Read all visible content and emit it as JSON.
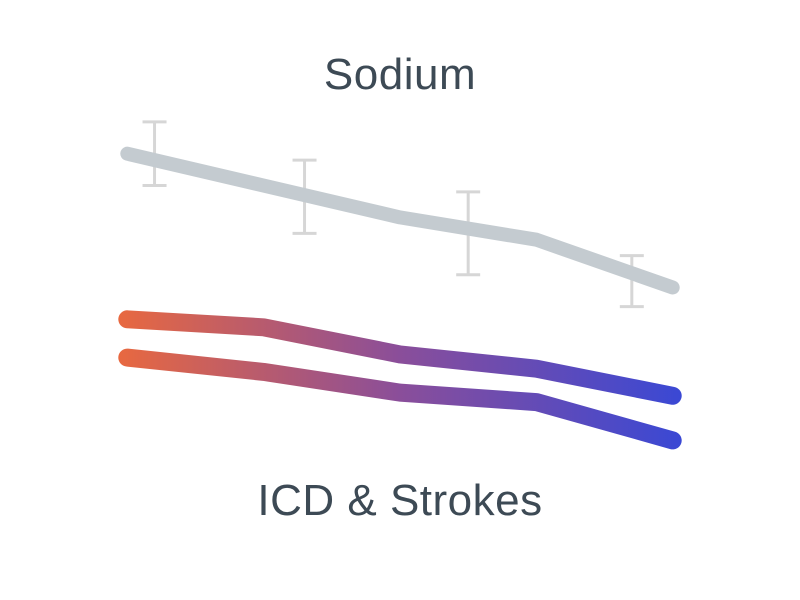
{
  "chart_data": {
    "type": "line",
    "grid": false,
    "legend": "none",
    "x": [
      1,
      2,
      3,
      4,
      5
    ],
    "series": [
      {
        "name": "Sodium",
        "label_position": "above",
        "color": "#c4cbd0",
        "error_bar_color": "#d6d6d6",
        "values": [
          6.0,
          5.0,
          4.0,
          3.3,
          1.8
        ],
        "error_bars": [
          {
            "x": 1.2,
            "center": 6.0,
            "low": 5.0,
            "high": 7.0
          },
          {
            "x": 2.3,
            "center": 4.5,
            "low": 3.5,
            "high": 5.8
          },
          {
            "x": 3.5,
            "center": 3.6,
            "low": 2.2,
            "high": 4.8
          },
          {
            "x": 4.7,
            "center": 2.2,
            "low": 1.2,
            "high": 2.8
          }
        ]
      },
      {
        "name": "ICD & Strokes",
        "label_position": "below",
        "gradient": [
          "#ee6a3a",
          "#8a4e9a",
          "#3548d8"
        ],
        "values": [
          0.8,
          0.55,
          -0.3,
          -0.75,
          -1.6
        ]
      },
      {
        "name": "ICD & Strokes",
        "label_position": "below",
        "gradient": [
          "#ee6a3a",
          "#8a4e9a",
          "#3548d8"
        ],
        "values": [
          -0.4,
          -0.85,
          -1.5,
          -1.8,
          -3.0
        ]
      }
    ],
    "xlim": [
      0.8,
      5.2
    ],
    "ylim": [
      -5.5,
      8.0
    ]
  }
}
